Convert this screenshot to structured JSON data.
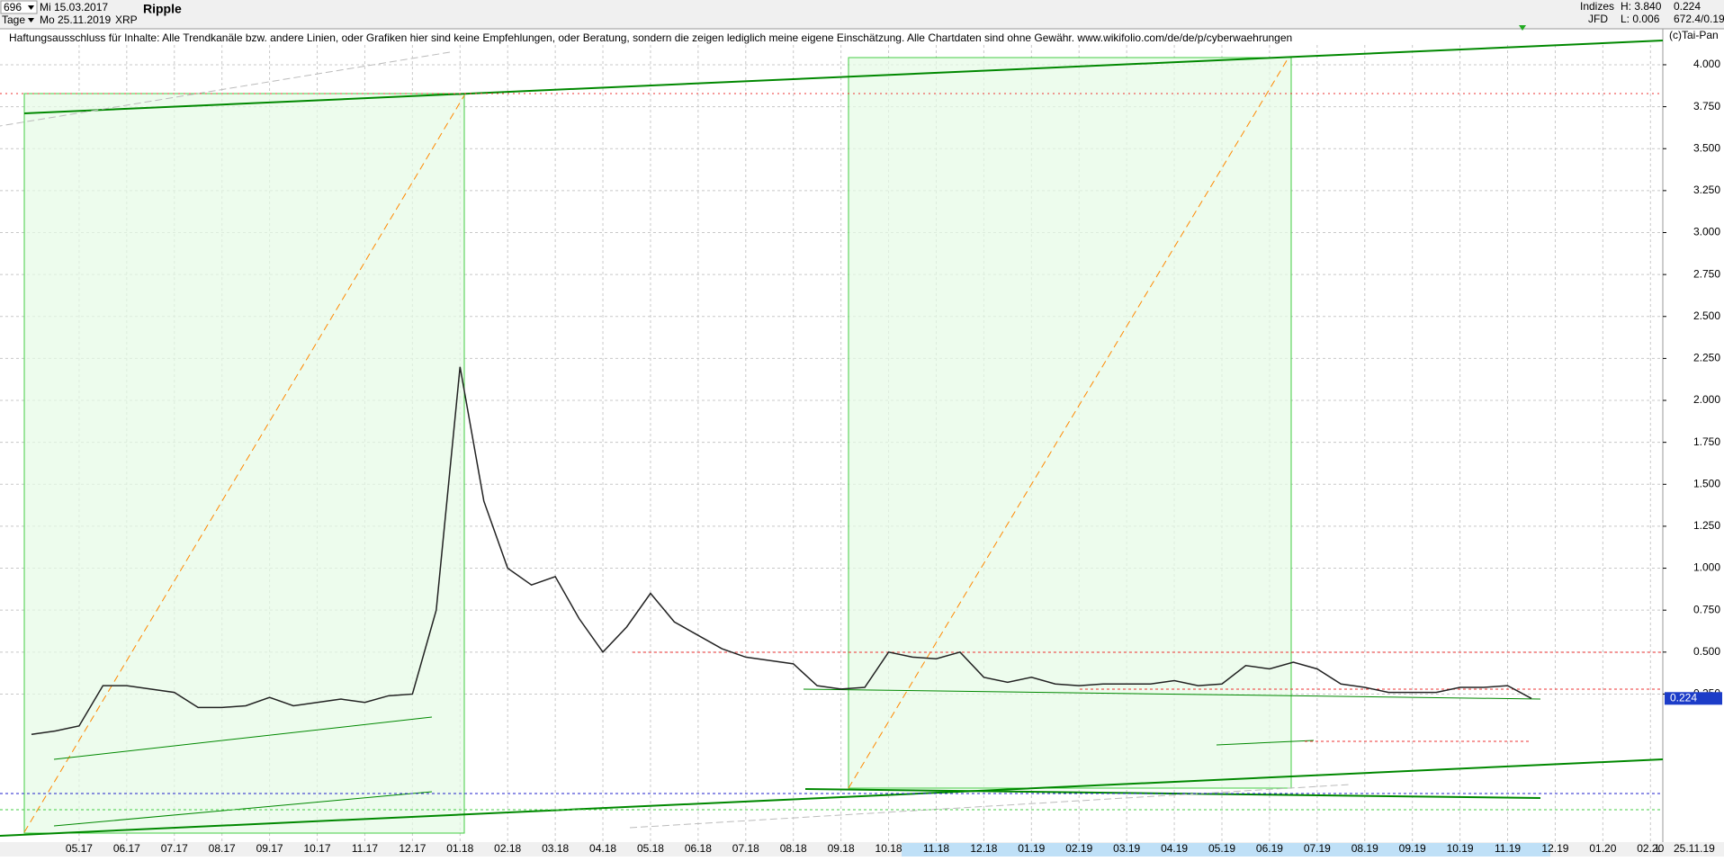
{
  "header": {
    "bars": "696",
    "start_date": "Mi 15.03.2017",
    "period": "Tage",
    "end_date": "Mo 25.11.2019",
    "symbol": "XRP",
    "name": "Ripple",
    "disclaimer": "Haftungsausschluss für Inhalte: Alle Trendkanäle bzw. andere Linien, oder Grafiken hier sind keine Empfehlungen, oder Beratung, sondern die zeigen lediglich meine eigene Einschätzung. Alle Chartdaten sind ohne Gewähr.  www.wikifolio.com/de/de/p/cyberwaehrungen",
    "copyright": "(c)Tai-Pan",
    "info": {
      "market": "Indizes",
      "high": "H: 3.840",
      "last": "0.224",
      "source": "JFD",
      "low": "L: 0.006",
      "extra": "672.4/0.19"
    }
  },
  "chart_data": {
    "type": "line",
    "color": "#222222",
    "grid": true,
    "categories": [
      null,
      null,
      "05.17",
      null,
      "06.17",
      null,
      "07.17",
      null,
      "08.17",
      null,
      "09.17",
      null,
      "10.17",
      null,
      "11.17",
      null,
      "12.17",
      null,
      "01.18",
      null,
      "02.18",
      null,
      "03.18",
      null,
      "04.18",
      null,
      "05.18",
      null,
      "06.18",
      null,
      "07.18",
      null,
      "08.18",
      null,
      "09.18",
      null,
      "10.18",
      null,
      "11.18",
      null,
      "12.18",
      null,
      "01.19",
      null,
      "02.19",
      null,
      "03.19",
      null,
      "04.19",
      null,
      "05.19",
      null,
      "06.19",
      null,
      "07.19",
      null,
      "08.19",
      null,
      "09.19",
      null,
      "10.19",
      null,
      "11.19",
      null,
      "12.19",
      null,
      "01.20",
      null,
      "02.20"
    ],
    "values": [
      0.01,
      0.03,
      0.06,
      0.3,
      0.3,
      0.28,
      0.26,
      0.17,
      0.17,
      0.18,
      0.23,
      0.18,
      0.2,
      0.22,
      0.2,
      0.24,
      0.25,
      0.75,
      2.2,
      1.4,
      1.0,
      0.9,
      0.95,
      0.7,
      0.5,
      0.65,
      0.85,
      0.68,
      0.6,
      0.52,
      0.47,
      0.45,
      0.43,
      0.3,
      0.28,
      0.29,
      0.5,
      0.47,
      0.46,
      0.5,
      0.35,
      0.32,
      0.35,
      0.31,
      0.3,
      0.31,
      0.31,
      0.31,
      0.33,
      0.3,
      0.31,
      0.42,
      0.4,
      0.44,
      0.4,
      0.31,
      0.29,
      0.26,
      0.26,
      0.26,
      0.29,
      0.29,
      0.3,
      0.224,
      null,
      null,
      null,
      null,
      null
    ],
    "last_value": 0.224,
    "ylim": [
      -0.6,
      4.225
    ],
    "yticks": [
      {
        "value": 0.25,
        "label": "0.250"
      },
      {
        "value": 0.5,
        "label": "0.500"
      },
      {
        "value": 0.75,
        "label": "0.750"
      },
      {
        "value": 1,
        "label": "1.000"
      },
      {
        "value": 1.25,
        "label": "1.250"
      },
      {
        "value": 1.5,
        "label": "1.500"
      },
      {
        "value": 1.75,
        "label": "1.750"
      },
      {
        "value": 2,
        "label": "2.000"
      },
      {
        "value": 2.25,
        "label": "2.250"
      },
      {
        "value": 2.5,
        "label": "2.500"
      },
      {
        "value": 2.75,
        "label": "2.750"
      },
      {
        "value": 3,
        "label": "3.000"
      },
      {
        "value": 3.25,
        "label": "3.250"
      },
      {
        "value": 3.5,
        "label": "3.500"
      },
      {
        "value": 3.75,
        "label": "3.750"
      },
      {
        "value": 4,
        "label": "4.000"
      }
    ]
  },
  "footer": {
    "date": "25.11.19",
    "scale": "L"
  }
}
